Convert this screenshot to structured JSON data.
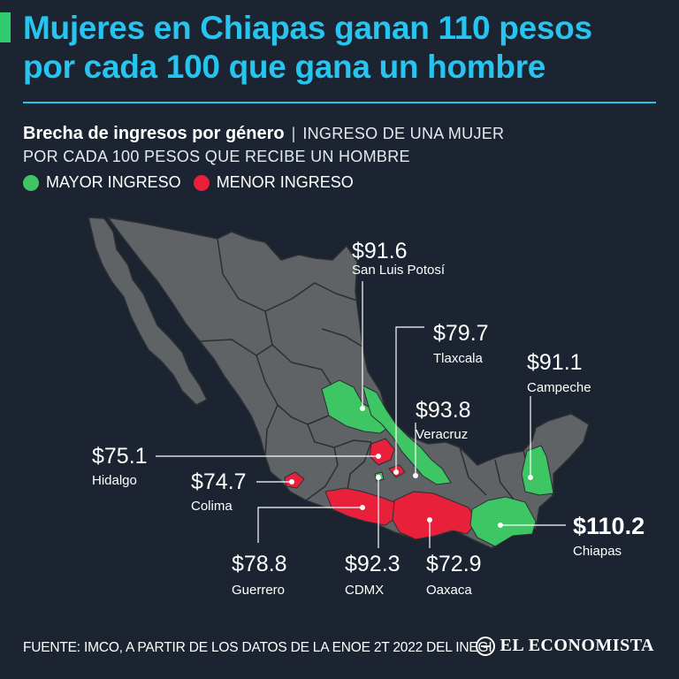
{
  "headline": {
    "line1": "Mujeres en Chiapas ganan 110 pesos",
    "line2": "por cada 100 que gana un hombre"
  },
  "subtitle": {
    "lead": "Brecha de ingresos por género",
    "separator": "|",
    "desc_line1": "INGRESO DE UNA MUJER",
    "desc_line2": "POR CADA 100 PESOS QUE RECIBE UN HOMBRE"
  },
  "legend": {
    "higher": {
      "label": "MAYOR INGRESO",
      "color": "#3ec564"
    },
    "lower": {
      "label": "MENOR INGRESO",
      "color": "#e8203a"
    }
  },
  "colors": {
    "background": "#1b2430",
    "title": "#27c4f0",
    "land": "#5f6366",
    "border": "#2b2f33",
    "leader": "#ffffff"
  },
  "states": [
    {
      "id": "san-luis-potosi",
      "value": "$91.6",
      "name": "San Luis Potosí",
      "group": "higher"
    },
    {
      "id": "tlaxcala",
      "value": "$79.7",
      "name": "Tlaxcala",
      "group": "lower"
    },
    {
      "id": "campeche",
      "value": "$91.1",
      "name": "Campeche",
      "group": "higher"
    },
    {
      "id": "veracruz",
      "value": "$93.8",
      "name": "Veracruz",
      "group": "higher"
    },
    {
      "id": "hidalgo",
      "value": "$75.1",
      "name": "Hidalgo",
      "group": "lower"
    },
    {
      "id": "colima",
      "value": "$74.7",
      "name": "Colima",
      "group": "lower"
    },
    {
      "id": "chiapas",
      "value": "$110.2",
      "name": "Chiapas",
      "group": "higher"
    },
    {
      "id": "guerrero",
      "value": "$78.8",
      "name": "Guerrero",
      "group": "lower"
    },
    {
      "id": "cdmx",
      "value": "$92.3",
      "name": "CDMX",
      "group": "higher"
    },
    {
      "id": "oaxaca",
      "value": "$72.9",
      "name": "Oaxaca",
      "group": "lower"
    }
  ],
  "footer": {
    "source": "FUENTE: IMCO, A PARTIR DE LOS DATOS DE LA ENOE 2T 2022 DEL INEGI",
    "brand": "EL ECONOMISTA"
  }
}
